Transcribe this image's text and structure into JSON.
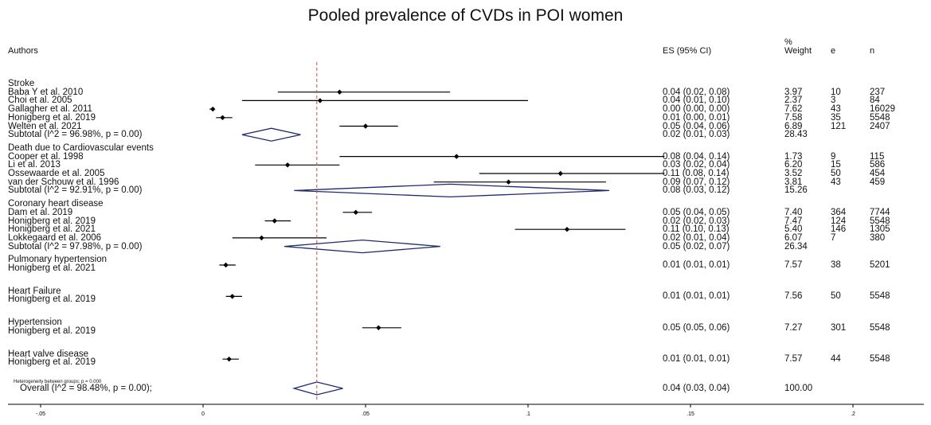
{
  "chart_data": {
    "type": "forest",
    "title": "Pooled prevalence of CVDs in POI women",
    "headers": {
      "authors": "Authors",
      "es": "ES (95% CI)",
      "weight_pct": "%",
      "weight": "Weight",
      "e": "e",
      "n": "n"
    },
    "x_ticks": [
      "-.05",
      "0",
      ".05",
      ".1",
      ".15",
      ".2"
    ],
    "x_tick_values": [
      -0.05,
      0,
      0.05,
      0.1,
      0.15,
      0.2
    ],
    "xlim": [
      -0.06,
      0.215
    ],
    "overall_line": 0.035,
    "heterogeneity_note": "Heterogeneity between groups: p = 0.000",
    "groups": [
      {
        "name": "Stroke",
        "studies": [
          {
            "label": "Baba Y et al. 2010",
            "es": 0.042,
            "lo": 0.023,
            "hi": 0.076,
            "es_text": "0.04 (0.02, 0.08)",
            "weight": "3.97",
            "e": "10",
            "n": "237"
          },
          {
            "label": "Choi et al. 2005",
            "es": 0.036,
            "lo": 0.012,
            "hi": 0.1,
            "es_text": "0.04 (0.01, 0.10)",
            "weight": "2.37",
            "e": "3",
            "n": "84"
          },
          {
            "label": "Gallagher et al. 2011",
            "es": 0.003,
            "lo": 0.002,
            "hi": 0.003,
            "es_text": "0.00 (0.00, 0.00)",
            "weight": "7.62",
            "e": "43",
            "n": "16029"
          },
          {
            "label": "Honigberg et al. 2019",
            "es": 0.006,
            "lo": 0.004,
            "hi": 0.009,
            "es_text": "0.01 (0.00, 0.01)",
            "weight": "7.58",
            "e": "35",
            "n": "5548"
          },
          {
            "label": "Welten et al. 2021",
            "es": 0.05,
            "lo": 0.042,
            "hi": 0.06,
            "es_text": "0.05 (0.04, 0.06)",
            "weight": "6.89",
            "e": "121",
            "n": "2407"
          }
        ],
        "subtotal": {
          "label": "Subtotal  (I^2 = 96.98%, p = 0.00)",
          "es": 0.021,
          "lo": 0.012,
          "hi": 0.03,
          "es_text": "0.02 (0.01, 0.03)",
          "weight": "28.43"
        }
      },
      {
        "name": "Death due to Cardiovascular events",
        "studies": [
          {
            "label": "Cooper et al. 1998",
            "es": 0.078,
            "lo": 0.042,
            "hi": 0.142,
            "es_text": "0.08 (0.04, 0.14)",
            "weight": "1.73",
            "e": "9",
            "n": "115"
          },
          {
            "label": "Li et al. 2013",
            "es": 0.026,
            "lo": 0.016,
            "hi": 0.042,
            "es_text": "0.03 (0.02, 0.04)",
            "weight": "6.20",
            "e": "15",
            "n": "586"
          },
          {
            "label": "Ossewaarde et al. 2005",
            "es": 0.11,
            "lo": 0.085,
            "hi": 0.142,
            "es_text": "0.11 (0.08, 0.14)",
            "weight": "3.52",
            "e": "50",
            "n": "454"
          },
          {
            "label": "van der Schouw et al. 1996",
            "es": 0.094,
            "lo": 0.071,
            "hi": 0.124,
            "es_text": "0.09 (0.07, 0.12)",
            "weight": "3.81",
            "e": "43",
            "n": "459"
          }
        ],
        "subtotal": {
          "label": "Subtotal  (I^2 = 92.91%, p = 0.00)",
          "es": 0.076,
          "lo": 0.028,
          "hi": 0.125,
          "es_text": "0.08 (0.03, 0.12)",
          "weight": "15.26"
        }
      },
      {
        "name": "Coronary heart disease",
        "studies": [
          {
            "label": "Dam et al. 2019",
            "es": 0.047,
            "lo": 0.043,
            "hi": 0.052,
            "es_text": "0.05 (0.04, 0.05)",
            "weight": "7.40",
            "e": "364",
            "n": "7744"
          },
          {
            "label": "Honigberg et al. 2019",
            "es": 0.022,
            "lo": 0.019,
            "hi": 0.027,
            "es_text": "0.02 (0.02, 0.03)",
            "weight": "7.47",
            "e": "124",
            "n": "5548"
          },
          {
            "label": "Honigberg et al. 2021",
            "es": 0.112,
            "lo": 0.096,
            "hi": 0.13,
            "es_text": "0.11 (0.10, 0.13)",
            "weight": "5.40",
            "e": "146",
            "n": "1305"
          },
          {
            "label": "Lokkegaard et al. 2006",
            "es": 0.018,
            "lo": 0.009,
            "hi": 0.038,
            "es_text": "0.02 (0.01, 0.04)",
            "weight": "6.07",
            "e": "7",
            "n": "380"
          }
        ],
        "subtotal": {
          "label": "Subtotal  (I^2 = 97.98%, p = 0.00)",
          "es": 0.049,
          "lo": 0.025,
          "hi": 0.073,
          "es_text": "0.05 (0.02, 0.07)",
          "weight": "26.34"
        }
      },
      {
        "name": "Pulmonary hypertension",
        "studies": [
          {
            "label": "Honigberg et al. 2021",
            "es": 0.007,
            "lo": 0.005,
            "hi": 0.01,
            "es_text": "0.01 (0.01, 0.01)",
            "weight": "7.57",
            "e": "38",
            "n": "5201"
          }
        ]
      },
      {
        "name": "Heart Failure",
        "studies": [
          {
            "label": "Honigberg et al. 2019",
            "es": 0.009,
            "lo": 0.007,
            "hi": 0.012,
            "es_text": "0.01 (0.01, 0.01)",
            "weight": "7.56",
            "e": "50",
            "n": "5548"
          }
        ]
      },
      {
        "name": "Hypertension",
        "studies": [
          {
            "label": "Honigberg et al. 2019",
            "es": 0.054,
            "lo": 0.049,
            "hi": 0.061,
            "es_text": "0.05 (0.05, 0.06)",
            "weight": "7.27",
            "e": "301",
            "n": "5548"
          }
        ]
      },
      {
        "name": "Heart valve disease",
        "studies": [
          {
            "label": "Honigberg et al. 2019",
            "es": 0.008,
            "lo": 0.006,
            "hi": 0.011,
            "es_text": "0.01 (0.01, 0.01)",
            "weight": "7.57",
            "e": "44",
            "n": "5548"
          }
        ]
      }
    ],
    "overall": {
      "label": "Overall  (I^2 = 98.48%, p = 0.00);",
      "es": 0.035,
      "lo": 0.028,
      "hi": 0.043,
      "es_text": "0.04 (0.03, 0.04)",
      "weight": "100.00"
    },
    "colors": {
      "diamond": "#1f2a6b",
      "reference_line": "#c0504d",
      "ci_line": "#000000"
    }
  }
}
